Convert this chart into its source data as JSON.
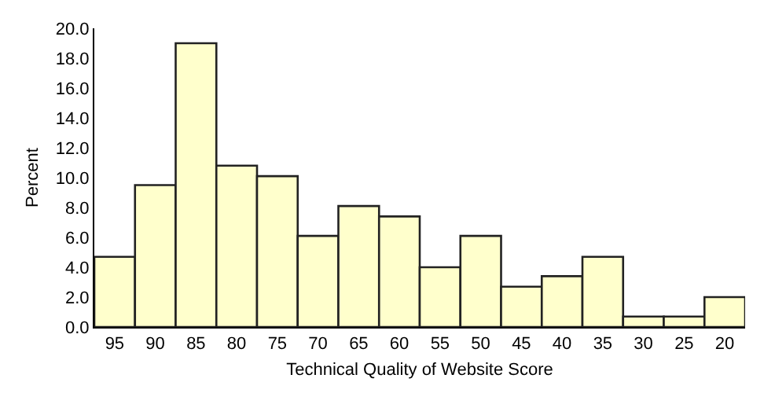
{
  "chart_data": {
    "type": "bar",
    "xlabel": "Technical Quality of Website Score",
    "ylabel": "Percent",
    "categories": [
      "95",
      "90",
      "85",
      "80",
      "75",
      "70",
      "65",
      "60",
      "55",
      "50",
      "45",
      "40",
      "35",
      "30",
      "25",
      "20"
    ],
    "values": [
      4.7,
      9.5,
      19.0,
      10.8,
      10.1,
      6.1,
      8.1,
      7.4,
      4.0,
      6.1,
      2.7,
      3.4,
      4.7,
      0.7,
      0.7,
      2.0
    ],
    "color": "#ffffcc",
    "ylim": [
      0,
      20
    ],
    "yticks": [
      {
        "value": 0,
        "label": "0.0"
      },
      {
        "value": 2,
        "label": "2.0"
      },
      {
        "value": 4,
        "label": "4.0"
      },
      {
        "value": 6,
        "label": "6.0"
      },
      {
        "value": 8,
        "label": "8.0"
      },
      {
        "value": 10,
        "label": "10.0"
      },
      {
        "value": 12,
        "label": "12.0"
      },
      {
        "value": 14,
        "label": "14.0"
      },
      {
        "value": 16,
        "label": "16.0"
      },
      {
        "value": 18,
        "label": "18.0"
      },
      {
        "value": 20,
        "label": "20.0"
      }
    ],
    "grid": false
  }
}
